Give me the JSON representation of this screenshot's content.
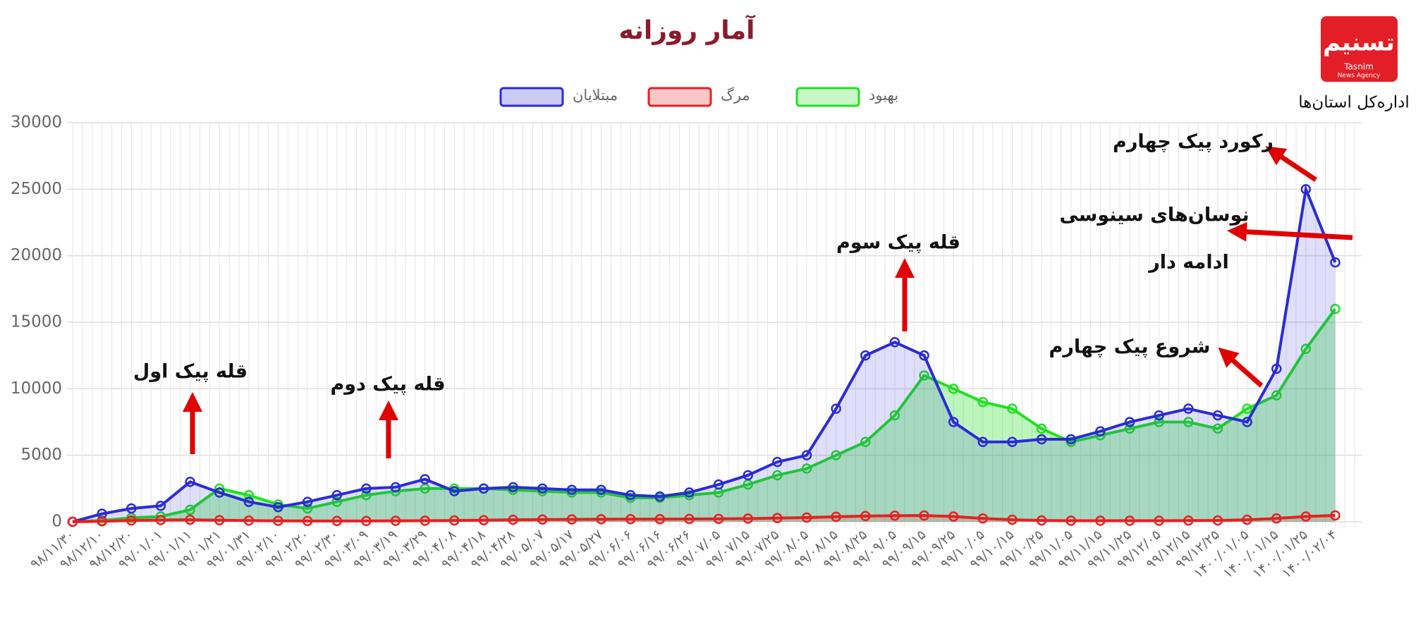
{
  "logo": {
    "brand": "تسنیم",
    "brand_en": "Tasnim",
    "agency_en": "News Agency",
    "department": "اداره‌کل استان‌ها"
  },
  "chart_data": {
    "type": "line",
    "title": "آمار روزانه",
    "categories": [
      "۹۸/۱۱/۳۰",
      "۹۸/۱۲/۱۰",
      "۹۸/۱۲/۲۰",
      "۹۹/۰۱/۰۱",
      "۹۹/۰۱/۱۱",
      "۹۹/۰۱/۲۱",
      "۹۹/۰۱/۳۱",
      "۹۹/۰۲/۱۰",
      "۹۹/۰۲/۲۰",
      "۹۹/۰۲/۳۰",
      "۹۹/۰۳/۰۹",
      "۹۹/۰۳/۱۹",
      "۹۹/۰۳/۲۹",
      "۹۹/۰۴/۰۸",
      "۹۹/۰۴/۱۸",
      "۹۹/۰۴/۲۸",
      "۹۹/۰۵/۰۷",
      "۹۹/۰۵/۱۷",
      "۹۹/۰۵/۲۷",
      "۹۹/۰۶/۰۶",
      "۹۹/۰۶/۱۶",
      "۹۹/۰۶/۲۶",
      "۹۹/۰۷/۰۵",
      "۹۹/۰۷/۱۵",
      "۹۹/۰۷/۲۵",
      "۹۹/۰۸/۰۵",
      "۹۹/۰۸/۱۵",
      "۹۹/۰۸/۲۵",
      "۹۹/۰۹/۰۵",
      "۹۹/۰۹/۱۵",
      "۹۹/۰۹/۲۵",
      "۹۹/۱۰/۰۵",
      "۹۹/۱۰/۱۵",
      "۹۹/۱۰/۲۵",
      "۹۹/۱۱/۰۵",
      "۹۹/۱۱/۱۵",
      "۹۹/۱۱/۲۵",
      "۹۹/۱۲/۰۵",
      "۹۹/۱۲/۱۵",
      "۹۹/۱۲/۲۵",
      "۱۴۰۰/۰۱/۰۵",
      "۱۴۰۰/۰۱/۱۵",
      "۱۴۰۰/۰۱/۲۵",
      "۱۴۰۰/۰۲/۰۴"
    ],
    "series": [
      {
        "name": "مبتلایان",
        "color": "#2b2bd6",
        "values": [
          0,
          600,
          1000,
          1200,
          3000,
          2200,
          1500,
          1100,
          1500,
          2000,
          2500,
          2600,
          3200,
          2300,
          2500,
          2600,
          2500,
          2400,
          2400,
          2000,
          1900,
          2200,
          2800,
          3500,
          4500,
          5000,
          8500,
          12500,
          13500,
          12500,
          7500,
          6000,
          6000,
          6200,
          6200,
          6800,
          7500,
          8000,
          8500,
          8000,
          7500,
          11500,
          25000,
          19500
        ]
      },
      {
        "name": "مرگ",
        "color": "#e82020",
        "values": [
          0,
          30,
          100,
          130,
          150,
          120,
          90,
          70,
          60,
          60,
          60,
          70,
          80,
          100,
          120,
          150,
          170,
          180,
          190,
          200,
          200,
          210,
          220,
          240,
          280,
          320,
          380,
          430,
          460,
          470,
          400,
          250,
          150,
          100,
          80,
          80,
          80,
          80,
          90,
          100,
          150,
          250,
          400,
          480
        ]
      },
      {
        "name": "بهبود",
        "color": "#22e022",
        "values": [
          0,
          100,
          300,
          400,
          900,
          2500,
          2000,
          1300,
          1000,
          1500,
          2000,
          2300,
          2500,
          2500,
          2500,
          2400,
          2300,
          2200,
          2200,
          1800,
          1800,
          2000,
          2200,
          2800,
          3500,
          4000,
          5000,
          6000,
          8000,
          11000,
          10000,
          9000,
          8500,
          7000,
          6000,
          6500,
          7000,
          7500,
          7500,
          7000,
          8500,
          9500,
          13000,
          16000
        ]
      }
    ],
    "ylim": [
      0,
      30000
    ],
    "yticks": [
      0,
      5000,
      10000,
      15000,
      20000,
      25000,
      30000
    ],
    "grid": true,
    "annotations": [
      "قله پیک اول",
      "قله پیک دوم",
      "قله پیک سوم",
      "شروع پیک چهارم",
      "نوسان‌های سینوسی",
      "ادامه دار",
      "رکورد پیک چهارم"
    ]
  }
}
